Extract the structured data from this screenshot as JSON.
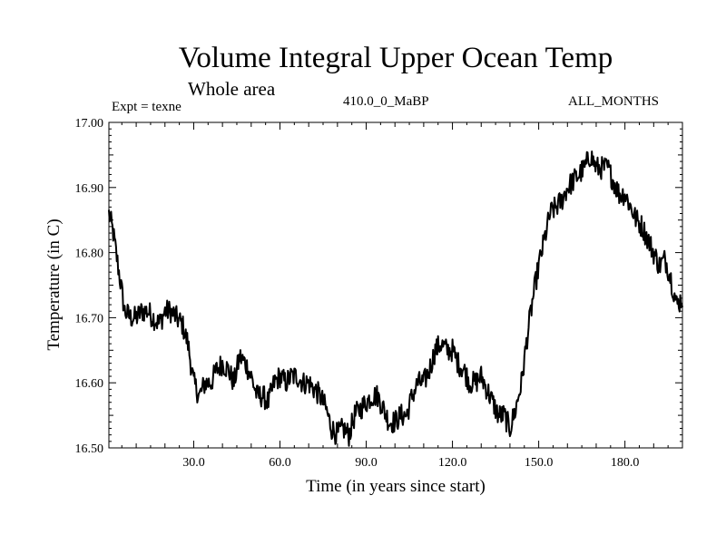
{
  "chart_data": {
    "type": "line",
    "title": "Volume Integral Upper Ocean Temp",
    "subtitle": "Whole area",
    "experiment": "Expt = texne",
    "period": "410.0_0_MaBP",
    "months": "ALL_MONTHS",
    "xlabel": "Time (in years since start)",
    "ylabel": "Temperature (in C)",
    "xlim": [
      0.5,
      200
    ],
    "ylim": [
      16.5,
      17.0
    ],
    "xticks": [
      30,
      60,
      90,
      120,
      150,
      180
    ],
    "xtick_labels": [
      "30.0",
      "60.0",
      "90.0",
      "120.0",
      "150.0",
      "180.0"
    ],
    "yticks": [
      16.5,
      16.6,
      16.7,
      16.8,
      16.9,
      17.0
    ],
    "ytick_labels": [
      "16.50",
      "16.60",
      "16.70",
      "16.80",
      "16.90",
      "17.00"
    ],
    "grid": false,
    "series": [
      {
        "name": "texne",
        "x": [
          0.5,
          2,
          4,
          6,
          8,
          10,
          12,
          14,
          16,
          18,
          20,
          22,
          24,
          26,
          28,
          30,
          32,
          34,
          36,
          38,
          40,
          42,
          44,
          46,
          48,
          50,
          52,
          54,
          56,
          58,
          60,
          62,
          64,
          66,
          68,
          70,
          72,
          74,
          76,
          78,
          80,
          82,
          84,
          86,
          88,
          90,
          92,
          94,
          96,
          98,
          100,
          102,
          104,
          106,
          108,
          110,
          112,
          114,
          116,
          118,
          120,
          122,
          124,
          126,
          128,
          130,
          132,
          134,
          136,
          138,
          140,
          142,
          144,
          146,
          148,
          150,
          152,
          154,
          156,
          158,
          160,
          162,
          164,
          166,
          168,
          170,
          172,
          174,
          176,
          178,
          180,
          182,
          184,
          186,
          188,
          190,
          192,
          194,
          196,
          198,
          200
        ],
        "values": [
          16.86,
          16.83,
          16.77,
          16.71,
          16.7,
          16.7,
          16.71,
          16.71,
          16.7,
          16.69,
          16.71,
          16.71,
          16.7,
          16.69,
          16.66,
          16.6,
          16.58,
          16.6,
          16.6,
          16.62,
          16.63,
          16.62,
          16.6,
          16.64,
          16.63,
          16.61,
          16.58,
          16.58,
          16.57,
          16.6,
          16.61,
          16.6,
          16.61,
          16.61,
          16.6,
          16.6,
          16.59,
          16.58,
          16.56,
          16.53,
          16.52,
          16.53,
          16.52,
          16.55,
          16.56,
          16.57,
          16.58,
          16.58,
          16.56,
          16.54,
          16.54,
          16.55,
          16.55,
          16.58,
          16.6,
          16.6,
          16.62,
          16.65,
          16.66,
          16.65,
          16.65,
          16.63,
          16.62,
          16.6,
          16.6,
          16.61,
          16.59,
          16.57,
          16.55,
          16.55,
          16.53,
          16.56,
          16.6,
          16.67,
          16.73,
          16.78,
          16.82,
          16.86,
          16.87,
          16.88,
          16.9,
          16.91,
          16.92,
          16.93,
          16.95,
          16.93,
          16.93,
          16.93,
          16.91,
          16.89,
          16.89,
          16.87,
          16.85,
          16.84,
          16.82,
          16.8,
          16.78,
          16.79,
          16.76,
          16.72,
          16.73
        ]
      }
    ]
  }
}
